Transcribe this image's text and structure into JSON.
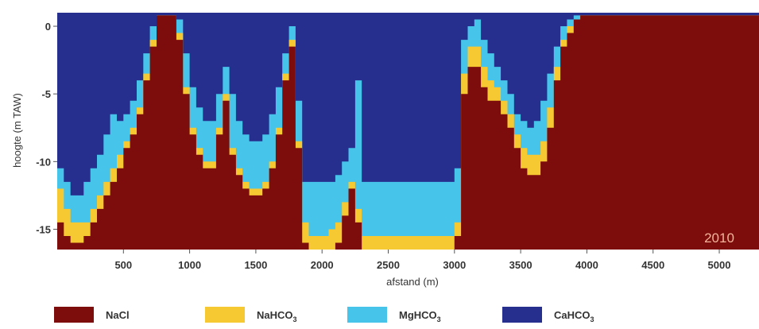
{
  "chart_data": {
    "type": "area",
    "title": "",
    "xlabel": "afstand (m)",
    "ylabel": "hoogte (m TAW)",
    "xlim": [
      0,
      5300
    ],
    "ylim": [
      -16.5,
      1
    ],
    "x_ticks": [
      500,
      1000,
      1500,
      2000,
      2500,
      3000,
      3500,
      4000,
      4500,
      5000
    ],
    "y_ticks": [
      0,
      -5,
      -10,
      -15
    ],
    "annotation": "2010",
    "legend_position": "bottom",
    "series": [
      {
        "name": "NaCl",
        "formula": "NaCl",
        "sub": "",
        "color": "#7d0c0c"
      },
      {
        "name": "NaHCO3",
        "formula": "NaHCO",
        "sub": "3",
        "color": "#f6c832"
      },
      {
        "name": "MgHCO3",
        "formula": "MgHCO",
        "sub": "3",
        "color": "#46c4ea"
      },
      {
        "name": "CaHCO3",
        "formula": "CaHCO",
        "sub": "3",
        "color": "#262e8e"
      }
    ],
    "x": [
      0,
      50,
      100,
      150,
      200,
      250,
      300,
      350,
      400,
      450,
      500,
      550,
      600,
      650,
      700,
      750,
      800,
      850,
      900,
      950,
      1000,
      1050,
      1100,
      1150,
      1200,
      1250,
      1300,
      1350,
      1400,
      1450,
      1500,
      1550,
      1600,
      1650,
      1700,
      1750,
      1800,
      1850,
      1900,
      1950,
      2000,
      2050,
      2100,
      2150,
      2200,
      2250,
      2300,
      2350,
      2400,
      2450,
      2500,
      2550,
      2600,
      2650,
      2700,
      2750,
      2800,
      2850,
      2900,
      2950,
      3000,
      3050,
      3100,
      3150,
      3200,
      3250,
      3300,
      3350,
      3400,
      3450,
      3500,
      3550,
      3600,
      3650,
      3700,
      3750,
      3800,
      3850,
      3900,
      3950,
      4000,
      4500,
      5000,
      5300
    ],
    "boundaries": {
      "NaCl_top": [
        -14.5,
        -15.5,
        -16.0,
        -16.0,
        -15.5,
        -14.5,
        -13.5,
        -12.5,
        -11.5,
        -10.5,
        -9.0,
        -8.0,
        -6.5,
        -4.0,
        -1.5,
        0.8,
        0.8,
        0.8,
        -1.0,
        -5.0,
        -8.0,
        -9.5,
        -10.5,
        -10.5,
        -8.0,
        -5.5,
        -9.5,
        -11.0,
        -12.0,
        -12.5,
        -12.5,
        -12.0,
        -10.5,
        -8.0,
        -4.0,
        -1.5,
        -9.0,
        -16.0,
        -16.5,
        -16.5,
        -16.5,
        -16.5,
        -16.0,
        -14.0,
        -12.0,
        -14.5,
        -16.5,
        -16.5,
        -16.5,
        -16.5,
        -16.5,
        -16.5,
        -16.5,
        -16.5,
        -16.5,
        -16.5,
        -16.5,
        -16.5,
        -16.5,
        -16.5,
        -15.5,
        -5.0,
        -3.0,
        -3.0,
        -4.5,
        -5.5,
        -5.5,
        -6.5,
        -7.5,
        -9.0,
        -10.5,
        -11.0,
        -11.0,
        -10.0,
        -7.5,
        -4.0,
        -1.5,
        -0.5,
        0.5,
        0.8,
        0.8,
        0.8,
        0.8,
        0.8
      ],
      "NaHCO3_top": [
        -12.0,
        -13.5,
        -14.5,
        -14.5,
        -14.5,
        -13.5,
        -12.5,
        -11.5,
        -10.5,
        -9.5,
        -8.5,
        -7.5,
        -6.0,
        -3.5,
        -1.0,
        0.8,
        0.8,
        0.8,
        -0.5,
        -4.5,
        -7.5,
        -9.0,
        -10.0,
        -10.0,
        -7.5,
        -5.0,
        -9.0,
        -10.5,
        -11.5,
        -12.0,
        -12.0,
        -11.5,
        -10.0,
        -7.5,
        -3.5,
        -1.0,
        -8.5,
        -14.5,
        -15.5,
        -15.5,
        -15.5,
        -15.0,
        -14.5,
        -13.0,
        -11.5,
        -13.5,
        -15.5,
        -15.5,
        -15.5,
        -15.5,
        -15.5,
        -15.5,
        -15.5,
        -15.5,
        -15.5,
        -15.5,
        -15.5,
        -15.5,
        -15.5,
        -15.5,
        -14.5,
        -3.5,
        -1.5,
        -1.5,
        -3.0,
        -4.0,
        -4.5,
        -5.5,
        -6.5,
        -8.0,
        -9.0,
        -9.5,
        -9.5,
        -8.5,
        -6.0,
        -3.0,
        -1.0,
        0.0,
        0.5,
        0.8,
        0.8,
        0.8,
        0.8,
        0.8
      ],
      "MgHCO3_top": [
        -10.5,
        -11.5,
        -12.5,
        -12.5,
        -11.5,
        -10.5,
        -9.5,
        -8.0,
        -6.5,
        -7.0,
        -6.5,
        -5.5,
        -4.0,
        -2.0,
        0.0,
        0.8,
        0.8,
        0.8,
        0.5,
        -2.0,
        -4.5,
        -6.0,
        -7.0,
        -7.0,
        -5.0,
        -3.0,
        -5.0,
        -7.0,
        -8.0,
        -8.5,
        -8.5,
        -8.0,
        -6.5,
        -4.5,
        -2.0,
        0.0,
        -5.5,
        -11.5,
        -11.5,
        -11.5,
        -11.5,
        -11.5,
        -11.0,
        -10.0,
        -9.0,
        -4.0,
        -11.5,
        -11.5,
        -11.5,
        -11.5,
        -11.5,
        -11.5,
        -11.5,
        -11.5,
        -11.5,
        -11.5,
        -11.5,
        -11.5,
        -11.5,
        -11.5,
        -10.5,
        -1.0,
        0.0,
        0.5,
        -1.0,
        -2.0,
        -3.0,
        -4.0,
        -5.0,
        -6.5,
        -7.0,
        -7.5,
        -7.0,
        -5.5,
        -3.5,
        -1.5,
        0.0,
        0.5,
        0.8,
        0.8,
        0.8,
        0.8,
        0.8,
        0.8
      ]
    }
  }
}
